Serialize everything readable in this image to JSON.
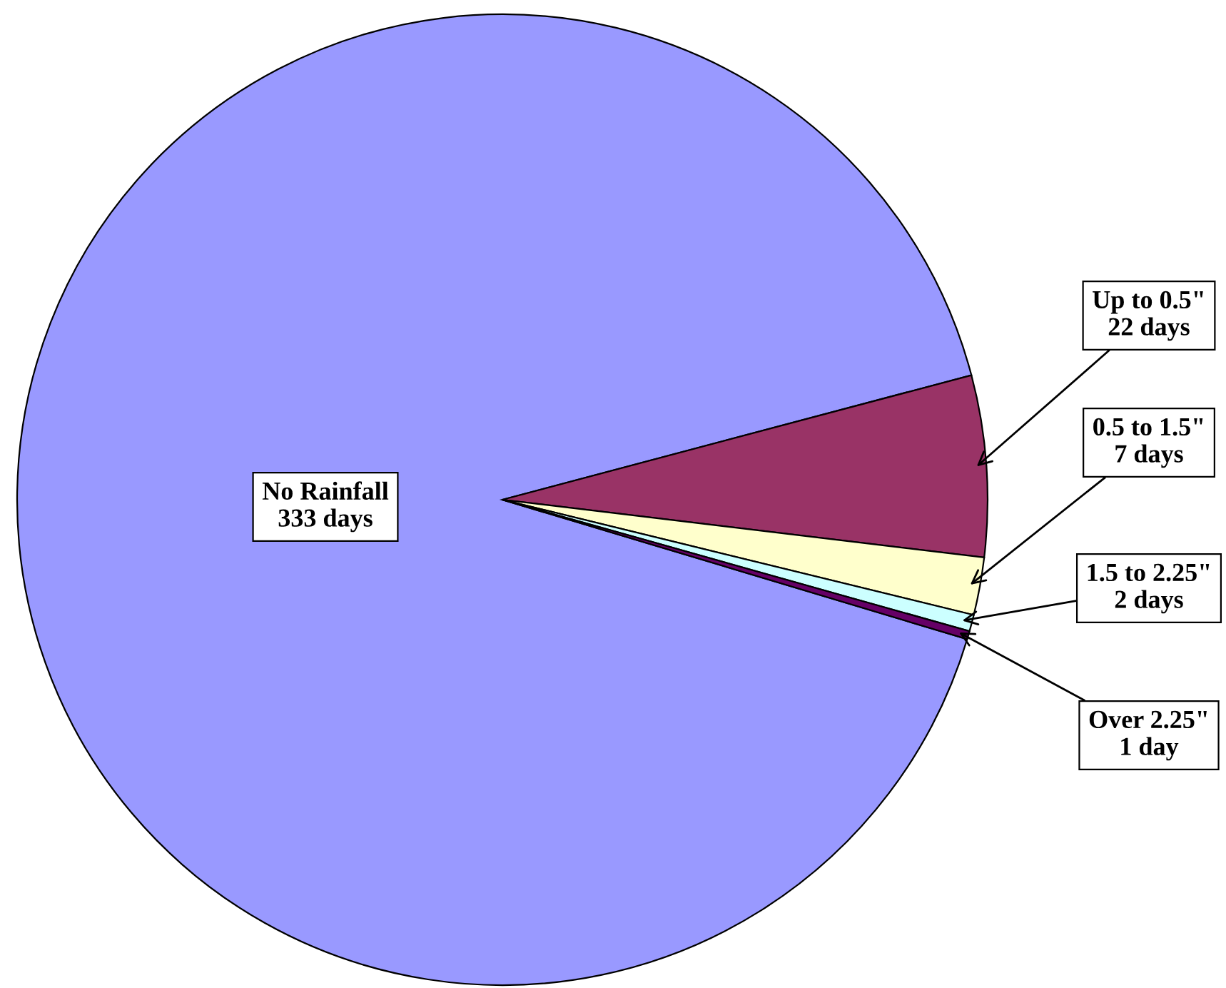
{
  "chart_data": {
    "type": "pie",
    "categories": [
      "No Rainfall",
      "Up to 0.5\"",
      "0.5 to 1.5\"",
      "1.5 to 2.25\"",
      "Over 2.25\""
    ],
    "values": [
      333,
      22,
      7,
      2,
      1
    ],
    "colors": [
      "#9999ff",
      "#993366",
      "#ffffcc",
      "#ccffff",
      "#660066"
    ],
    "value_labels": [
      "333 days",
      "22 days",
      "7 days",
      "2 days",
      "1 day"
    ]
  }
}
